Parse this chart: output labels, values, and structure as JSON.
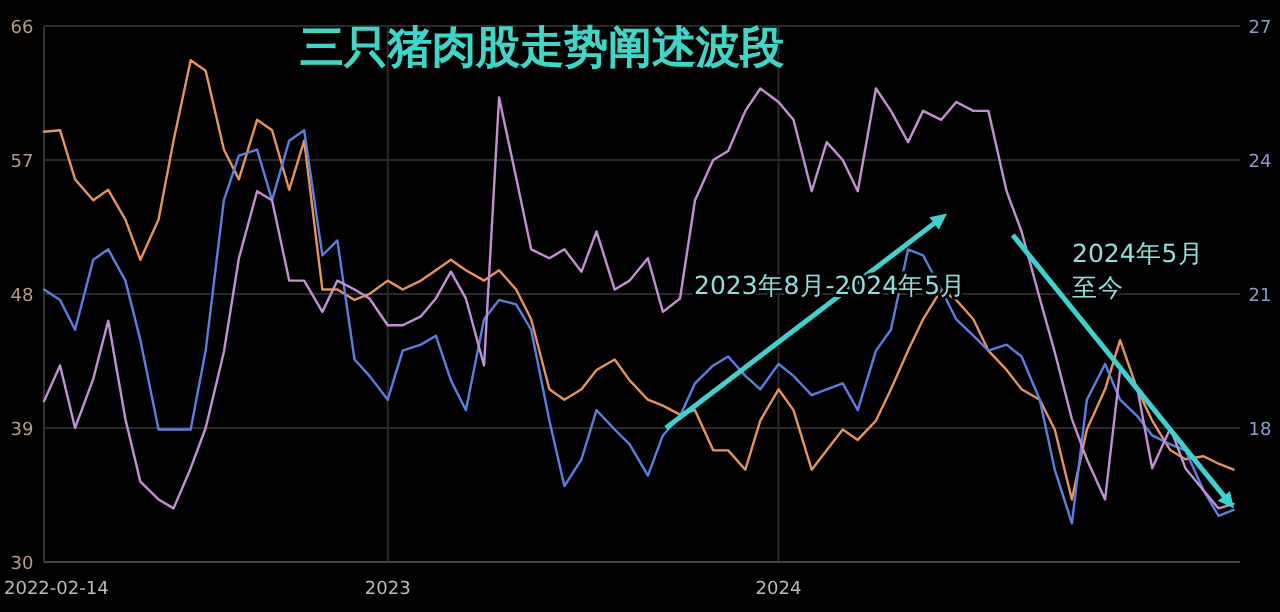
{
  "chart_data": {
    "type": "line",
    "title": "三只猪肉股走势阐述波段",
    "x": [
      "2022-02-14",
      "2022-03-01",
      "2022-03-15",
      "2022-04-01",
      "2022-04-15",
      "2022-05-01",
      "2022-05-15",
      "2022-06-01",
      "2022-06-15",
      "2022-07-01",
      "2022-07-15",
      "2022-08-01",
      "2022-08-15",
      "2022-09-01",
      "2022-09-15",
      "2022-10-01",
      "2022-10-15",
      "2022-11-01",
      "2022-11-15",
      "2022-12-01",
      "2022-12-15",
      "2023-01-01",
      "2023-01-15",
      "2023-02-01",
      "2023-02-15",
      "2023-03-01",
      "2023-03-15",
      "2023-04-01",
      "2023-04-15",
      "2023-05-01",
      "2023-05-15",
      "2023-06-01",
      "2023-06-15",
      "2023-07-01",
      "2023-07-15",
      "2023-08-01",
      "2023-08-15",
      "2023-09-01",
      "2023-09-15",
      "2023-10-01",
      "2023-10-15",
      "2023-11-01",
      "2023-11-15",
      "2023-12-01",
      "2023-12-15",
      "2024-01-01",
      "2024-01-15",
      "2024-02-01",
      "2024-02-15",
      "2024-03-01",
      "2024-03-15",
      "2024-04-01",
      "2024-04-15",
      "2024-05-01",
      "2024-05-15",
      "2024-06-01",
      "2024-06-15",
      "2024-07-01",
      "2024-07-15",
      "2024-08-01",
      "2024-08-15",
      "2024-09-01",
      "2024-09-15",
      "2024-10-01",
      "2024-10-15",
      "2024-11-01",
      "2024-11-15",
      "2024-12-01",
      "2024-12-15",
      "2025-01-01",
      "2025-01-15",
      "2025-02-01",
      "2025-02-15",
      "2025-03-01"
    ],
    "series": [
      {
        "color": "#e8935a",
        "values": [
          58.9,
          59.0,
          55.7,
          54.3,
          55.0,
          53.0,
          50.3,
          53.0,
          58.3,
          63.7,
          63.0,
          57.7,
          55.7,
          59.7,
          59.0,
          55.0,
          58.3,
          48.3,
          48.3,
          47.6,
          48.0,
          48.9,
          48.3,
          48.9,
          49.6,
          50.3,
          49.6,
          48.9,
          49.6,
          48.3,
          46.3,
          41.6,
          40.9,
          41.6,
          42.9,
          43.6,
          42.2,
          40.9,
          40.5,
          39.9,
          40.2,
          37.5,
          37.5,
          36.2,
          39.5,
          41.6,
          40.2,
          36.2,
          37.5,
          38.9,
          38.2,
          39.5,
          41.6,
          44.2,
          46.3,
          48.3,
          47.6,
          46.3,
          44.2,
          42.9,
          41.6,
          40.9,
          38.9,
          34.2,
          38.9,
          41.6,
          44.9,
          41.6,
          39.5,
          37.5,
          36.9,
          37.1,
          36.6,
          36.2
        ]
      },
      {
        "color": "#5b7fe0",
        "values": [
          48.3,
          47.6,
          45.6,
          50.3,
          51.0,
          48.9,
          44.9,
          38.9,
          38.9,
          38.9,
          44.2,
          54.3,
          57.3,
          57.7,
          54.3,
          58.3,
          59.0,
          50.6,
          51.6,
          43.6,
          42.5,
          40.9,
          44.2,
          44.6,
          45.2,
          42.2,
          40.2,
          46.3,
          47.6,
          47.3,
          45.6,
          39.5,
          35.1,
          36.9,
          40.2,
          38.9,
          37.9,
          35.8,
          38.5,
          39.8,
          42.0,
          43.2,
          43.8,
          42.5,
          41.6,
          43.3,
          42.5,
          41.2,
          41.6,
          42.0,
          40.2,
          44.2,
          45.6,
          51.0,
          50.6,
          48.3,
          46.3,
          45.2,
          44.2,
          44.6,
          43.8,
          40.9,
          36.2,
          32.6,
          40.9,
          43.3,
          40.9,
          39.8,
          38.5,
          37.9,
          37.5,
          34.8,
          33.1,
          33.5
        ]
      },
      {
        "color": "#c58fd6",
        "axis": "y2",
        "values": [
          18.6,
          19.4,
          18.0,
          19.1,
          20.4,
          18.2,
          16.8,
          16.4,
          16.2,
          17.1,
          18.0,
          19.7,
          21.8,
          23.3,
          23.1,
          21.3,
          21.3,
          20.6,
          21.3,
          21.1,
          20.9,
          20.3,
          20.3,
          20.5,
          20.9,
          21.5,
          20.9,
          19.4,
          25.4,
          23.6,
          22.0,
          21.8,
          22.0,
          21.5,
          22.4,
          21.1,
          21.3,
          21.8,
          20.6,
          20.9,
          23.1,
          24.0,
          24.2,
          25.1,
          25.6,
          25.3,
          24.9,
          23.3,
          24.4,
          24.0,
          23.3,
          25.6,
          25.1,
          24.4,
          25.1,
          24.9,
          25.3,
          25.1,
          25.1,
          23.3,
          22.4,
          20.9,
          19.7,
          18.2,
          17.3,
          16.4,
          19.3,
          18.9,
          17.1,
          18.0,
          17.1,
          16.6,
          16.2,
          16.3
        ]
      }
    ],
    "xlim": [
      "2022-02-14",
      "2025-03-07"
    ],
    "xticks": [
      "2022-02-14",
      "2023",
      "2024"
    ],
    "ylim": [
      30,
      66
    ],
    "yticks": [
      30,
      39,
      48,
      57,
      66
    ],
    "y2lim": [
      15,
      27
    ],
    "y2ticks": [
      18,
      21,
      24,
      27
    ],
    "grid": true,
    "marker": "none",
    "line_style": "solid",
    "annotations": [
      "2023年8月-2024年5月",
      "2024年5月至今"
    ]
  }
}
